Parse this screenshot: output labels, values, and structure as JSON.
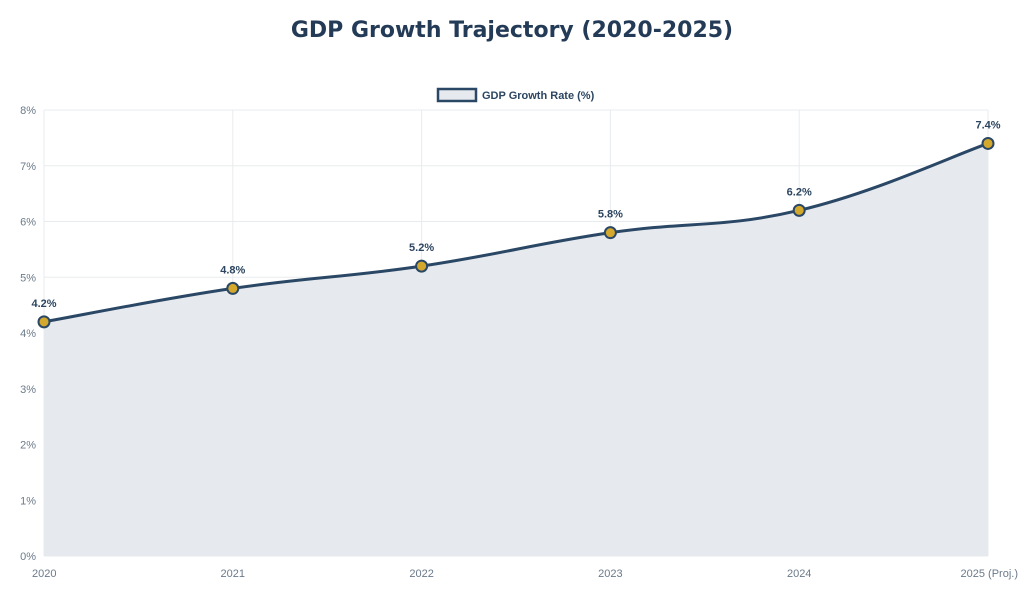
{
  "chart_data": {
    "type": "area",
    "title": "GDP Growth Trajectory (2020-2025)",
    "categories": [
      "2020",
      "2021",
      "2022",
      "2023",
      "2024",
      "2025 (Proj.)"
    ],
    "series": [
      {
        "name": "GDP Growth Rate (%)",
        "values": [
          4.2,
          4.8,
          5.2,
          5.8,
          6.2,
          7.4
        ]
      }
    ],
    "data_labels": [
      "4.2%",
      "4.8%",
      "5.2%",
      "5.8%",
      "6.2%",
      "7.4%"
    ],
    "y_ticks": [
      "0%",
      "1%",
      "2%",
      "3%",
      "4%",
      "5%",
      "6%",
      "7%",
      "8%"
    ],
    "ylim": [
      0,
      8
    ],
    "grid": true,
    "legend": "top",
    "colors": {
      "line": "#2a4866",
      "fill": "#e6e9ed",
      "point": "#d4a82c",
      "title": "#243b57"
    }
  }
}
